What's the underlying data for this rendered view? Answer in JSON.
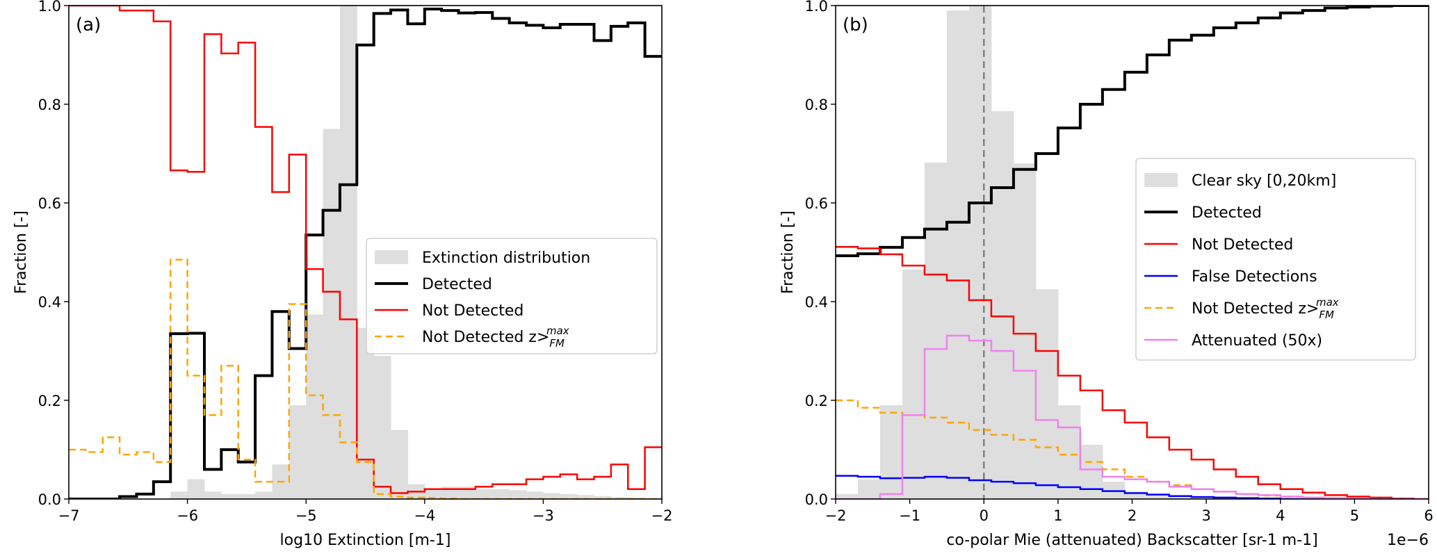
{
  "colors": {
    "hist": "#dedede",
    "detected": "#000000",
    "not_detected": "#ff0000",
    "not_detected_z": "#ffa500",
    "false_detections": "#0000ff",
    "attenuated": "#ee82ee",
    "zero_line": "#808080"
  },
  "chart_data": [
    {
      "type": "line",
      "panel_label": "(a)",
      "xlabel": "log10 Extinction [m-1]",
      "ylabel": "Fraction [-]",
      "xlim": [
        -7,
        -2
      ],
      "ylim": [
        0,
        1
      ],
      "xticks": [
        -7,
        -6,
        -5,
        -4,
        -3,
        -2
      ],
      "xtick_labels": [
        "−7",
        "−6",
        "−5",
        "−4",
        "−3",
        "−2"
      ],
      "yticks": [
        0,
        0.2,
        0.4,
        0.6,
        0.8,
        1.0
      ],
      "ytick_labels": [
        "0.0",
        "0.2",
        "0.4",
        "0.6",
        "0.8",
        "1.0"
      ],
      "legend_position": "center-right",
      "bin_start": -7,
      "bin_width": 0.142857,
      "histogram": {
        "name": "Extinction distribution",
        "color_key": "hist",
        "values": [
          0,
          0,
          0,
          0,
          0,
          0,
          0.015,
          0.04,
          0.015,
          0.01,
          0.01,
          0.015,
          0.07,
          0.19,
          0.374,
          0.75,
          1.0,
          0.347,
          0.29,
          0.14,
          0.03,
          0.02,
          0.025,
          0.025,
          0.02,
          0.02,
          0.018,
          0.015,
          0.012,
          0.01,
          0.008,
          0.006,
          0.004,
          0.003,
          0.002
        ]
      },
      "series": [
        {
          "name": "Detected",
          "color_key": "detected",
          "width": 4,
          "dash": "",
          "values": [
            0,
            0,
            0,
            0.005,
            0.01,
            0.035,
            0.335,
            0.336,
            0.06,
            0.1,
            0.075,
            0.25,
            0.38,
            0.305,
            0.535,
            0.585,
            0.637,
            0.92,
            0.984,
            0.991,
            0.963,
            0.993,
            0.99,
            0.985,
            0.986,
            0.974,
            0.965,
            0.96,
            0.955,
            0.962,
            0.962,
            0.929,
            0.958,
            0.965,
            0.897
          ]
        },
        {
          "name": "Not Detected",
          "color_key": "not_detected",
          "width": 2.5,
          "dash": "",
          "values": [
            1.0,
            1.0,
            1.0,
            0.99,
            0.99,
            0.968,
            0.666,
            0.663,
            0.942,
            0.903,
            0.925,
            0.754,
            0.622,
            0.698,
            0.466,
            0.42,
            0.364,
            0.08,
            0.025,
            0.012,
            0.015,
            0.02,
            0.02,
            0.02,
            0.025,
            0.03,
            0.03,
            0.04,
            0.045,
            0.05,
            0.04,
            0.045,
            0.07,
            0.02,
            0.105
          ]
        },
        {
          "name": "Not Detected z>",
          "sub": "FM",
          "sup": "max",
          "color_key": "not_detected_z",
          "width": 2.5,
          "dash": "10,6",
          "values": [
            0.1,
            0.095,
            0.125,
            0.09,
            0.095,
            0.075,
            0.485,
            0.25,
            0.17,
            0.27,
            0.08,
            0.035,
            0.035,
            0.395,
            0.21,
            0.17,
            0.115,
            0.075,
            0.01,
            0.005,
            0.003,
            0.002,
            0.001,
            0,
            0,
            0,
            0,
            0,
            0,
            0,
            0,
            0,
            0,
            0,
            0
          ]
        }
      ]
    },
    {
      "type": "line",
      "panel_label": "(b)",
      "xlabel": "co-polar Mie (attenuated) Backscatter [sr-1 m-1]",
      "offset_text": "1e−6",
      "ylabel": "Fraction [-]",
      "xlim": [
        -2,
        6
      ],
      "ylim": [
        0,
        1
      ],
      "xticks": [
        -2,
        -1,
        0,
        1,
        2,
        3,
        4,
        5,
        6
      ],
      "xtick_labels": [
        "−2",
        "−1",
        "0",
        "1",
        "2",
        "3",
        "4",
        "5",
        "6"
      ],
      "yticks": [
        0,
        0.2,
        0.4,
        0.6,
        0.8,
        1.0
      ],
      "ytick_labels": [
        "0.0",
        "0.2",
        "0.4",
        "0.6",
        "0.8",
        "1.0"
      ],
      "legend_position": "center-right",
      "vline_x": 0,
      "bin_start": -2,
      "bin_width": 0.3,
      "histogram": {
        "name": "Clear sky [0,20km]",
        "color_key": "hist",
        "values": [
          0.01,
          0.04,
          0.19,
          0.465,
          0.682,
          0.99,
          1.0,
          0.786,
          0.68,
          0.425,
          0.19,
          0.11,
          0.035,
          0.015,
          0.01,
          0.005,
          0.004,
          0.003,
          0.002,
          0.001,
          0,
          0,
          0,
          0,
          0,
          0,
          0
        ]
      },
      "series": [
        {
          "name": "Detected",
          "color_key": "detected",
          "width": 4,
          "dash": "",
          "values": [
            0.493,
            0.497,
            0.51,
            0.53,
            0.547,
            0.561,
            0.6,
            0.631,
            0.668,
            0.7,
            0.752,
            0.8,
            0.83,
            0.865,
            0.9,
            0.93,
            0.94,
            0.955,
            0.965,
            0.975,
            0.985,
            0.99,
            0.995,
            0.997,
            0.999,
            1.0,
            1.0
          ]
        },
        {
          "name": "Not Detected",
          "color_key": "not_detected",
          "width": 2.5,
          "dash": "",
          "values": [
            0.511,
            0.508,
            0.496,
            0.473,
            0.455,
            0.443,
            0.403,
            0.37,
            0.335,
            0.3,
            0.25,
            0.22,
            0.18,
            0.155,
            0.125,
            0.1,
            0.08,
            0.06,
            0.045,
            0.03,
            0.02,
            0.013,
            0.008,
            0.005,
            0.003,
            0.001,
            0
          ]
        },
        {
          "name": "False Detections",
          "color_key": "false_detections",
          "width": 2.5,
          "dash": "",
          "values": [
            0.047,
            0.045,
            0.042,
            0.043,
            0.045,
            0.043,
            0.038,
            0.035,
            0.032,
            0.028,
            0.024,
            0.02,
            0.016,
            0.012,
            0.009,
            0.006,
            0.004,
            0.003,
            0.002,
            0.001,
            0,
            0,
            0,
            0,
            0,
            0,
            0
          ]
        },
        {
          "name": "Not Detected z>",
          "sub": "FM",
          "sup": "max",
          "color_key": "not_detected_z",
          "width": 2.5,
          "dash": "10,6",
          "values": [
            0.2,
            0.185,
            0.175,
            0.17,
            0.165,
            0.155,
            0.14,
            0.13,
            0.12,
            0.105,
            0.09,
            0.075,
            0.06,
            0.045,
            0.035,
            0.028,
            0.02,
            0.015,
            0.01,
            0.007,
            0.005,
            0.003,
            0.002,
            0.001,
            0,
            0,
            0
          ]
        },
        {
          "name": "Attenuated (50x)",
          "color_key": "attenuated",
          "width": 2.5,
          "dash": "",
          "values": [
            0,
            0,
            0.01,
            0.17,
            0.304,
            0.331,
            0.321,
            0.3,
            0.26,
            0.16,
            0.145,
            0.06,
            0.045,
            0.04,
            0.035,
            0.025,
            0.02,
            0.015,
            0.01,
            0.008,
            0.005,
            0.003,
            0.002,
            0.001,
            0,
            0,
            0
          ]
        }
      ]
    }
  ]
}
